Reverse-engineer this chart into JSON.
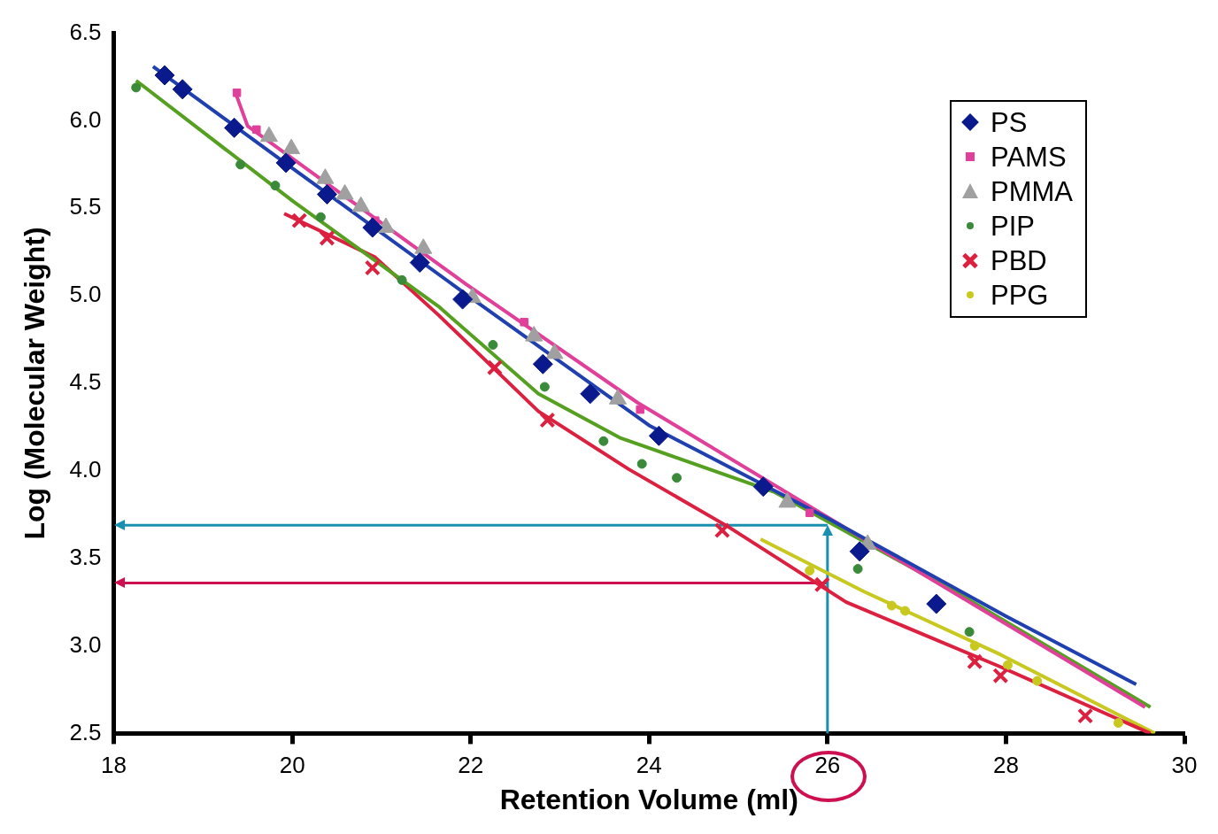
{
  "chart_data": {
    "type": "scatter",
    "xlabel": "Retention Volume (ml)",
    "ylabel": "Log (Molecular Weight)",
    "xlim": [
      18,
      30
    ],
    "xticks": [
      18,
      20,
      22,
      24,
      26,
      28,
      30
    ],
    "ylim": [
      2.5,
      6.5
    ],
    "yticks": [
      {
        "value": 2.5,
        "label": "2.5"
      },
      {
        "value": 3,
        "label": "3.0"
      },
      {
        "value": 3.5,
        "label": "3.5"
      },
      {
        "value": 4,
        "label": "4.0"
      },
      {
        "value": 4.5,
        "label": "4.5"
      },
      {
        "value": 5,
        "label": "5.0"
      },
      {
        "value": 5.5,
        "label": "5.5"
      },
      {
        "value": 6,
        "label": "6.0"
      },
      {
        "value": 6.5,
        "label": "6.5"
      }
    ],
    "grid": false,
    "legend": "top right",
    "series": [
      {
        "type": "line",
        "color": "#2040b0",
        "marker": "none",
        "x": [
          18.44,
          20,
          22,
          24,
          26,
          28,
          29.46
        ],
        "values": [
          6.31,
          5.73,
          4.99,
          4.26,
          3.73,
          3.17,
          2.78
        ]
      },
      {
        "type": "line",
        "color": "#e0409a",
        "marker": "none",
        "x": [
          19.35,
          19.5,
          21.94,
          23.87,
          26.41,
          29.56
        ],
        "values": [
          6.18,
          5.97,
          5.07,
          4.39,
          3.61,
          2.65
        ]
      },
      {
        "type": "line",
        "color": "#55a020",
        "marker": "none",
        "x": [
          18.25,
          20.01,
          21.64,
          22.76,
          23.67,
          25.4,
          27.43,
          29.62
        ],
        "values": [
          6.23,
          5.54,
          4.94,
          4.44,
          4.19,
          3.88,
          3.31,
          2.65
        ]
      },
      {
        "type": "line",
        "color": "#dc2040",
        "marker": "none",
        "x": [
          19.91,
          20.93,
          21.64,
          22.76,
          23.77,
          24.89,
          26.21,
          27.94,
          29.62
        ],
        "values": [
          5.47,
          5.22,
          4.89,
          4.34,
          4.01,
          3.68,
          3.25,
          2.88,
          2.5
        ]
      },
      {
        "type": "line",
        "color": "#c8c820",
        "marker": "none",
        "x": [
          25.25,
          26.41,
          27.94,
          29.67
        ],
        "values": [
          3.61,
          3.31,
          2.95,
          2.5
        ]
      },
      {
        "type": "scatter",
        "name": "PS",
        "color": "#0a1a8c",
        "marker": "diamond",
        "x": [
          18.57,
          18.77,
          19.35,
          19.93,
          20.39,
          20.9,
          21.43,
          21.91,
          22.81,
          23.34,
          24.11,
          25.28,
          26.36,
          27.22
        ],
        "values": [
          6.26,
          6.18,
          5.96,
          5.76,
          5.58,
          5.39,
          5.19,
          4.98,
          4.61,
          4.44,
          4.2,
          3.91,
          3.54,
          3.24
        ]
      },
      {
        "type": "scatter",
        "name": "PAMS",
        "color": "#e0409a",
        "marker": "square",
        "x": [
          19.38,
          19.6,
          20.93,
          22.6,
          23.9,
          25.8
        ],
        "values": [
          6.16,
          5.95,
          5.43,
          4.85,
          4.35,
          3.76
        ]
      },
      {
        "type": "scatter",
        "name": "PMMA",
        "color": "#a0a0a0",
        "marker": "triangle",
        "x": [
          19.74,
          19.99,
          20.37,
          20.59,
          20.77,
          21.05,
          21.47,
          22.02,
          22.71,
          22.94,
          23.65,
          25.55,
          26.45
        ],
        "values": [
          5.91,
          5.84,
          5.67,
          5.58,
          5.51,
          5.39,
          5.27,
          4.99,
          4.77,
          4.67,
          4.41,
          3.82,
          3.58
        ]
      },
      {
        "type": "scatter",
        "name": "PIP",
        "color": "#3a8a3a",
        "marker": "circle",
        "x": [
          18.25,
          19.42,
          19.81,
          20.32,
          21.23,
          22.25,
          22.83,
          23.49,
          23.92,
          24.31,
          26.34,
          27.59
        ],
        "values": [
          6.19,
          5.75,
          5.63,
          5.45,
          5.09,
          4.72,
          4.48,
          4.17,
          4.04,
          3.96,
          3.44,
          3.08
        ]
      },
      {
        "type": "scatter",
        "name": "PBD",
        "color": "#dc2040",
        "marker": "cross",
        "x": [
          20.08,
          20.39,
          20.9,
          22.27,
          22.86,
          24.82,
          25.94,
          27.65,
          27.94,
          28.89
        ],
        "values": [
          5.43,
          5.33,
          5.16,
          4.59,
          4.29,
          3.66,
          3.35,
          2.91,
          2.83,
          2.6
        ]
      },
      {
        "type": "scatter",
        "name": "PPG",
        "color": "#c8c820",
        "marker": "circle",
        "x": [
          25.8,
          26.72,
          26.87,
          27.65,
          28.02,
          28.35,
          29.26
        ],
        "values": [
          3.43,
          3.23,
          3.2,
          3.0,
          2.89,
          2.8,
          2.56
        ]
      }
    ],
    "ref_lines": [
      {
        "axis": "y",
        "value": 3.69,
        "color": "#1a90b0"
      },
      {
        "axis": "y",
        "value": 3.36,
        "color": "#cc1050"
      },
      {
        "axis": "x",
        "value": 26,
        "color": "#1a90b0"
      }
    ]
  }
}
